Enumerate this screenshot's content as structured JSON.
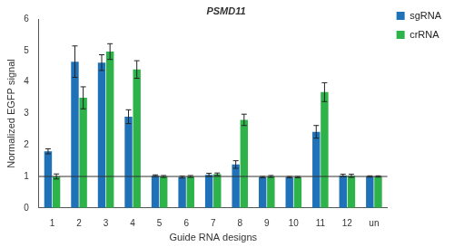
{
  "chart_data": {
    "type": "bar",
    "title": "PSMD11",
    "x_label": "Guide RNA designs",
    "y_label": "Normalized EGFP signal",
    "categories": [
      "1",
      "2",
      "3",
      "4",
      "5",
      "6",
      "7",
      "8",
      "9",
      "10",
      "11",
      "12",
      "un"
    ],
    "series": [
      {
        "name": "sgRNA",
        "color": "#1f72b8",
        "values": [
          1.8,
          4.65,
          4.62,
          2.9,
          1.02,
          0.98,
          1.05,
          1.38,
          0.98,
          0.98,
          2.42,
          1.03,
          1.0
        ],
        "errors": [
          0.08,
          0.5,
          0.25,
          0.22,
          0.03,
          0.03,
          0.05,
          0.12,
          0.02,
          0.02,
          0.2,
          0.04,
          0.02
        ]
      },
      {
        "name": "crRNA",
        "color": "#2db34a",
        "values": [
          1.0,
          3.5,
          4.97,
          4.4,
          1.0,
          1.0,
          1.07,
          2.8,
          1.0,
          0.98,
          3.68,
          1.02,
          1.0
        ],
        "errors": [
          0.08,
          0.35,
          0.25,
          0.28,
          0.03,
          0.03,
          0.04,
          0.18,
          0.03,
          0.02,
          0.3,
          0.05,
          0.02
        ]
      }
    ],
    "baseline": 1,
    "ylim": [
      0,
      6
    ],
    "yticks": [
      0,
      1,
      2,
      3,
      4,
      5,
      6
    ],
    "grid": false,
    "legend": "top-right"
  }
}
